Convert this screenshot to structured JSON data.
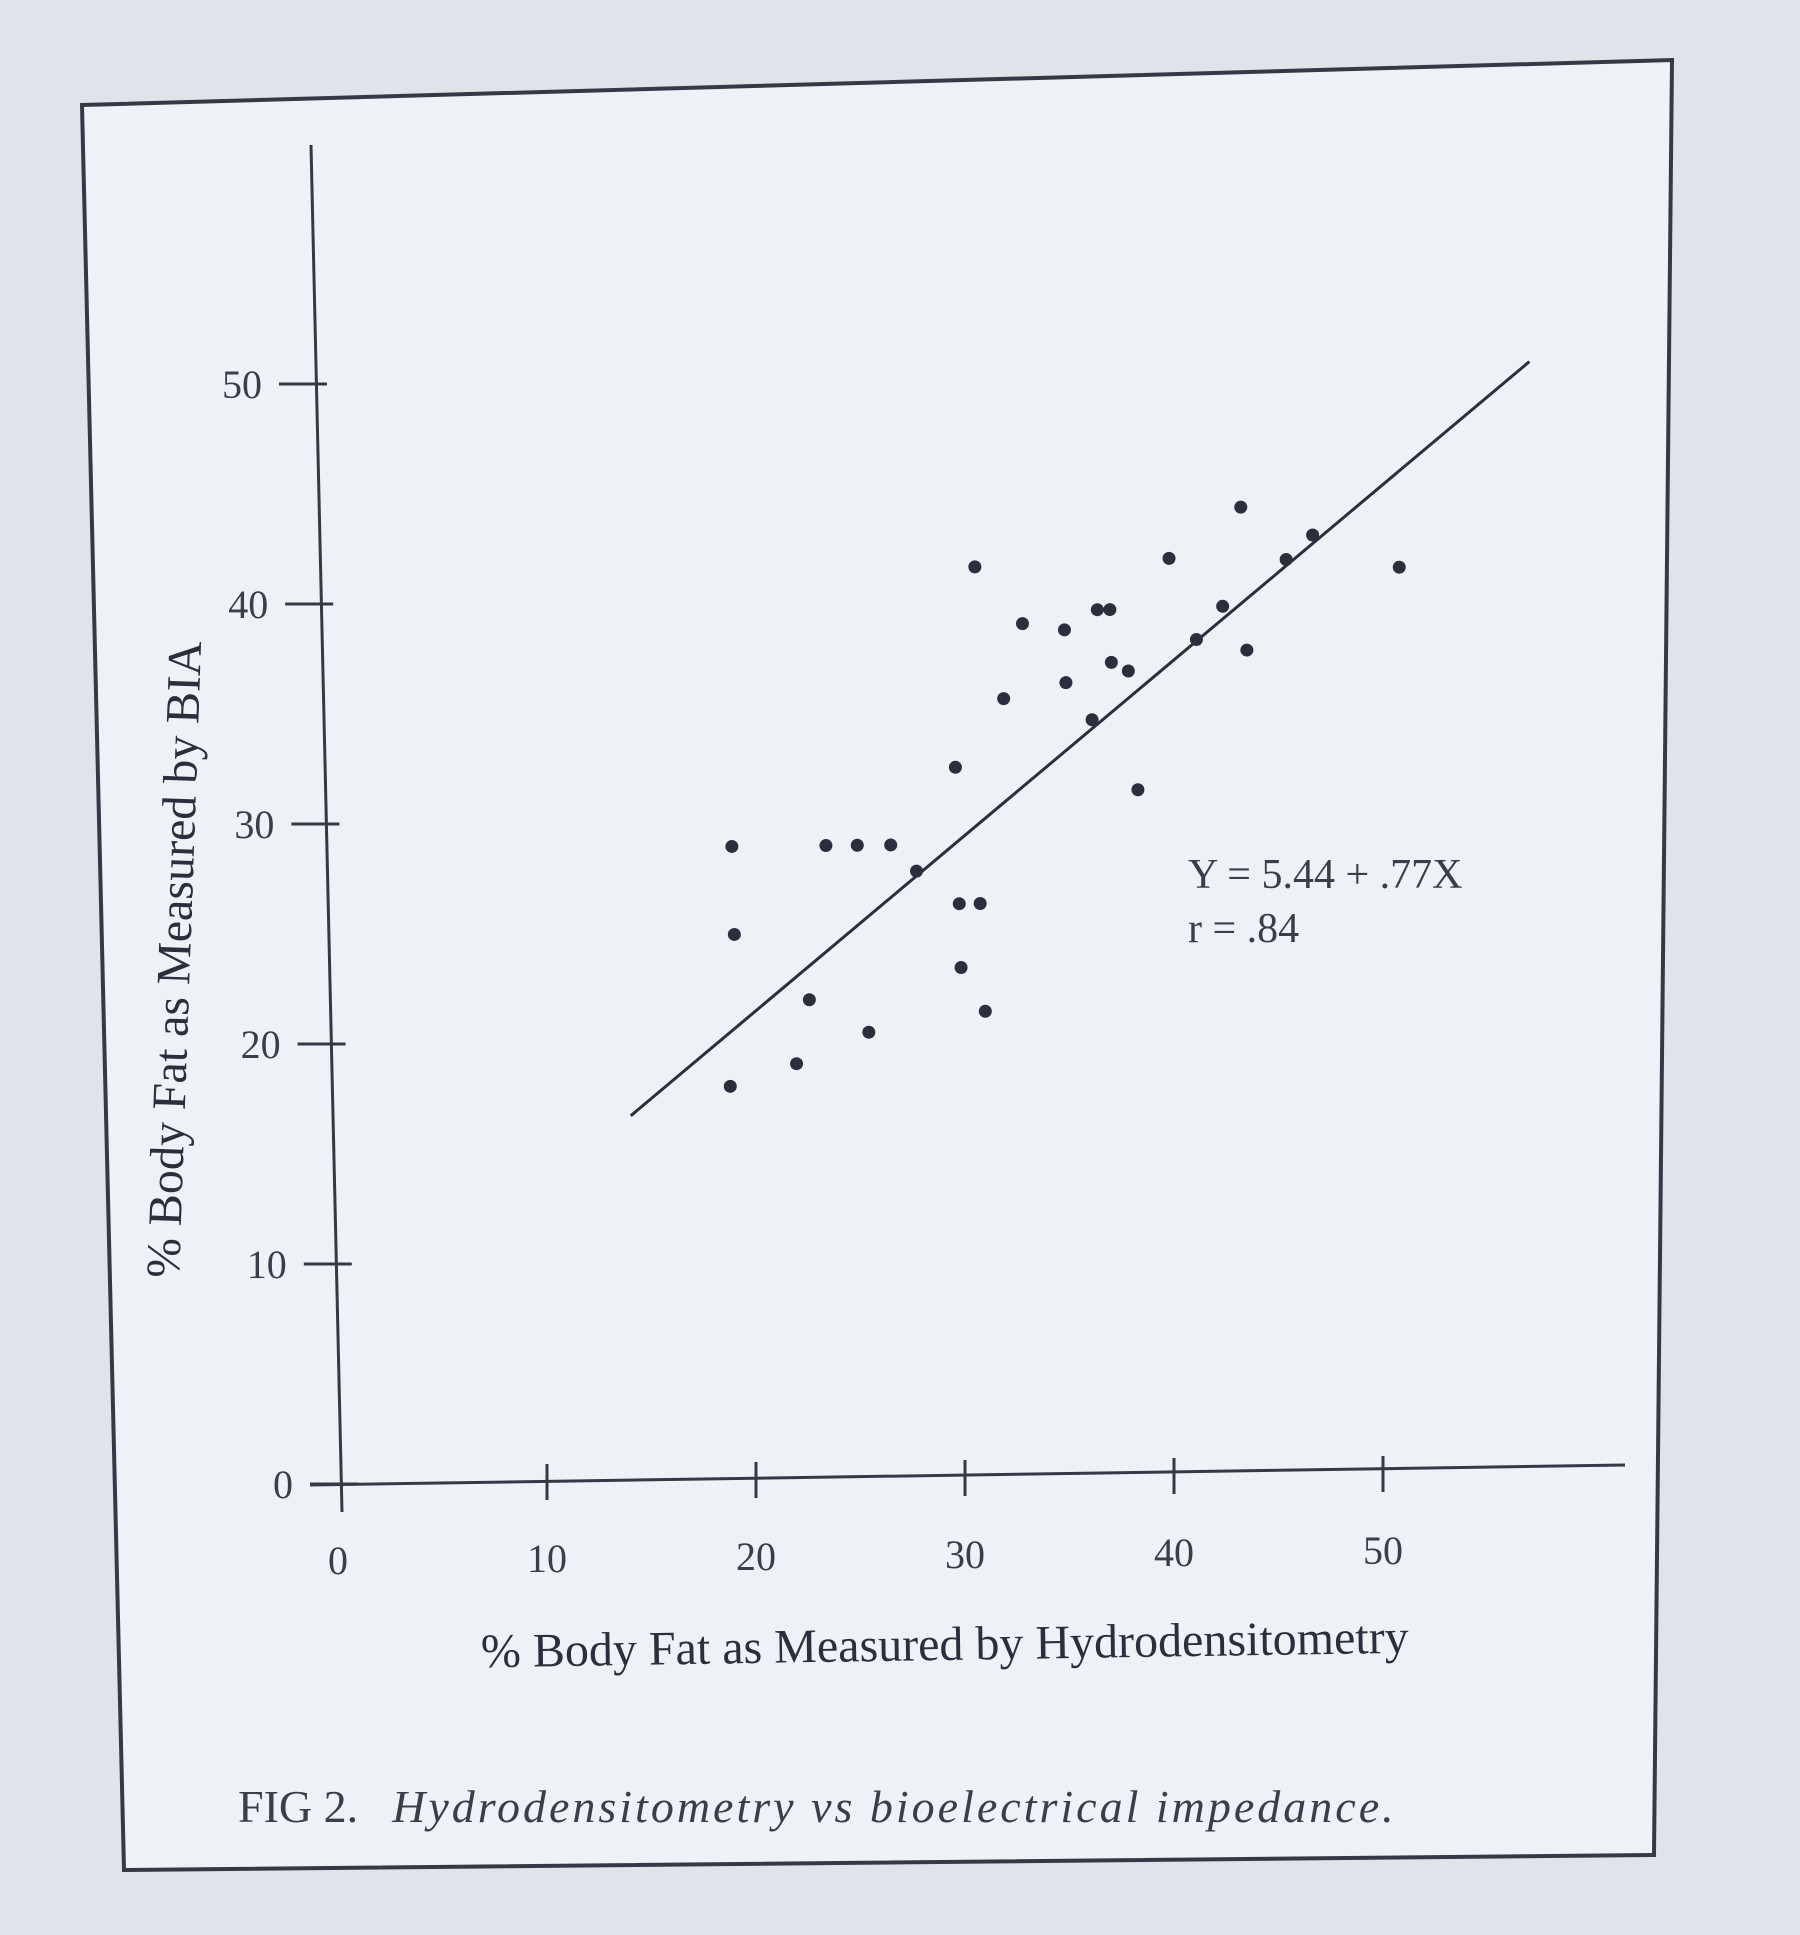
{
  "chart_data": {
    "type": "scatter",
    "xlabel": "% Body Fat as Measured by Hydrodensitometry",
    "ylabel": "% Body Fat as Measured by BIA",
    "xlim": [
      0,
      60
    ],
    "ylim": [
      0,
      60
    ],
    "x_ticks": [
      0,
      10,
      20,
      30,
      40,
      50
    ],
    "y_ticks": [
      0,
      10,
      20,
      30,
      40,
      50
    ],
    "x_tick_labels": [
      "0",
      "10",
      "20",
      "30",
      "40",
      "50"
    ],
    "y_tick_labels": [
      "0",
      "10",
      "20",
      "30",
      "40",
      "50"
    ],
    "grid": false,
    "series": [
      {
        "points": [
          [
            19.3,
            17.9
          ],
          [
            19.7,
            28.8
          ],
          [
            19.7,
            24.8
          ],
          [
            22.5,
            18.9
          ],
          [
            23.2,
            21.8
          ],
          [
            24.2,
            28.8
          ],
          [
            25.7,
            28.8
          ],
          [
            26.0,
            20.3
          ],
          [
            27.3,
            28.8
          ],
          [
            28.5,
            27.6
          ],
          [
            30.5,
            32.3
          ],
          [
            30.5,
            26.1
          ],
          [
            30.5,
            23.2
          ],
          [
            31.5,
            26.1
          ],
          [
            31.6,
            21.2
          ],
          [
            31.7,
            41.4
          ],
          [
            32.9,
            35.4
          ],
          [
            33.9,
            38.8
          ],
          [
            35.9,
            38.5
          ],
          [
            35.9,
            36.1
          ],
          [
            37.1,
            34.4
          ],
          [
            37.5,
            39.4
          ],
          [
            38.1,
            37.0
          ],
          [
            38.1,
            39.4
          ],
          [
            38.9,
            36.6
          ],
          [
            39.2,
            31.2
          ],
          [
            41.0,
            41.7
          ],
          [
            42.2,
            38.0
          ],
          [
            43.5,
            39.5
          ],
          [
            44.5,
            44.0
          ],
          [
            44.6,
            37.5
          ],
          [
            46.6,
            41.6
          ],
          [
            47.9,
            42.7
          ],
          [
            52.0,
            41.2
          ]
        ]
      }
    ],
    "regression": {
      "slope": 0.77,
      "intercept": 5.44,
      "x_range": [
        14.5,
        58.5
      ]
    },
    "annotations": [
      "Y = 5.44 + .77X",
      "r =  .84"
    ],
    "caption": {
      "number": "FIG 2.",
      "text": "Hydrodensitometry vs bioelectrical impedance."
    }
  }
}
